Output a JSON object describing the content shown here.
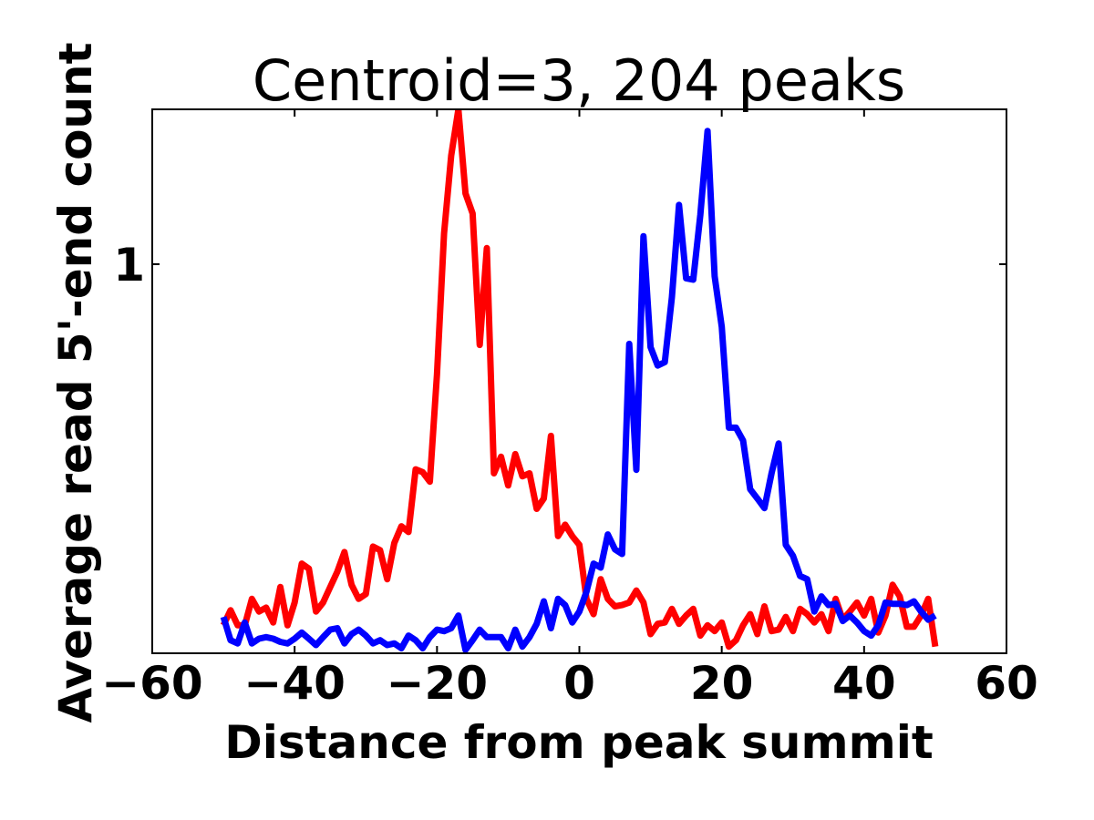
{
  "chart_data": {
    "type": "line",
    "title": "Centroid=3, 204 peaks",
    "xlabel": "Distance from peak summit",
    "ylabel": "Average read 5'-end count",
    "yscale": "log",
    "xlim": [
      -60,
      60
    ],
    "ylim": [
      0.1,
      2.5
    ],
    "xticks": [
      -60,
      -40,
      -20,
      0,
      20,
      40,
      60
    ],
    "xtick_labels": [
      "−60",
      "−40",
      "−20",
      "0",
      "20",
      "40",
      "60"
    ],
    "yticks": [
      1
    ],
    "ytick_labels": [
      "1"
    ],
    "grid": false,
    "legend": "none",
    "series": [
      {
        "color": "#ff0000",
        "x": [
          -50,
          -49,
          -48,
          -47,
          -46,
          -45,
          -44,
          -43,
          -42,
          -41,
          -40,
          -39,
          -38,
          -37,
          -36,
          -35,
          -34,
          -33,
          -32,
          -31,
          -30,
          -29,
          -28,
          -27,
          -26,
          -25,
          -24,
          -23,
          -22,
          -21,
          -20,
          -19,
          -18,
          -17,
          -16,
          -15,
          -14,
          -13,
          -12,
          -11,
          -10,
          -9,
          -8,
          -7,
          -6,
          -5,
          -4,
          -3,
          -2,
          -1,
          0,
          1,
          2,
          3,
          4,
          5,
          6,
          7,
          8,
          9,
          10,
          11,
          12,
          13,
          14,
          15,
          16,
          17,
          18,
          19,
          20,
          21,
          22,
          23,
          24,
          25,
          26,
          27,
          28,
          29,
          30,
          31,
          32,
          33,
          34,
          35,
          36,
          37,
          38,
          39,
          40,
          41,
          42,
          43,
          44,
          45,
          46,
          47,
          48,
          49,
          50
        ],
        "y": [
          0.118,
          0.129,
          0.118,
          0.118,
          0.138,
          0.128,
          0.131,
          0.12,
          0.148,
          0.118,
          0.135,
          0.17,
          0.165,
          0.128,
          0.135,
          0.148,
          0.162,
          0.182,
          0.15,
          0.138,
          0.142,
          0.188,
          0.184,
          0.155,
          0.192,
          0.212,
          0.205,
          0.297,
          0.292,
          0.276,
          0.52,
          1.2,
          1.9,
          2.5,
          1.52,
          1.35,
          0.62,
          1.1,
          0.29,
          0.32,
          0.27,
          0.325,
          0.285,
          0.29,
          0.235,
          0.25,
          0.362,
          0.2,
          0.214,
          0.2,
          0.19,
          0.138,
          0.126,
          0.155,
          0.138,
          0.132,
          0.133,
          0.135,
          0.145,
          0.135,
          0.112,
          0.119,
          0.12,
          0.13,
          0.119,
          0.125,
          0.13,
          0.111,
          0.118,
          0.114,
          0.12,
          0.104,
          0.108,
          0.118,
          0.126,
          0.112,
          0.132,
          0.114,
          0.115,
          0.124,
          0.114,
          0.13,
          0.126,
          0.12,
          0.126,
          0.114,
          0.138,
          0.122,
          0.128,
          0.135,
          0.125,
          0.138,
          0.113,
          0.125,
          0.15,
          0.14,
          0.117,
          0.117,
          0.125,
          0.138,
          0.104
        ]
      },
      {
        "color": "#0000ff",
        "x": [
          -50,
          -49,
          -48,
          -47,
          -46,
          -45,
          -44,
          -43,
          -42,
          -41,
          -40,
          -39,
          -38,
          -37,
          -36,
          -35,
          -34,
          -33,
          -32,
          -31,
          -30,
          -29,
          -28,
          -27,
          -26,
          -25,
          -24,
          -23,
          -22,
          -21,
          -20,
          -19,
          -18,
          -17,
          -16,
          -15,
          -14,
          -13,
          -12,
          -11,
          -10,
          -9,
          -8,
          -7,
          -6,
          -5,
          -4,
          -3,
          -2,
          -1,
          0,
          1,
          2,
          3,
          4,
          5,
          6,
          7,
          8,
          9,
          10,
          11,
          12,
          13,
          14,
          15,
          16,
          17,
          18,
          19,
          20,
          21,
          22,
          23,
          24,
          25,
          26,
          27,
          28,
          29,
          30,
          31,
          32,
          33,
          34,
          35,
          36,
          37,
          38,
          39,
          40,
          41,
          42,
          43,
          44,
          45,
          46,
          47,
          48,
          49,
          50
        ],
        "y": [
          0.124,
          0.108,
          0.106,
          0.12,
          0.106,
          0.109,
          0.11,
          0.109,
          0.107,
          0.106,
          0.109,
          0.113,
          0.109,
          0.105,
          0.11,
          0.115,
          0.116,
          0.106,
          0.112,
          0.115,
          0.111,
          0.106,
          0.108,
          0.105,
          0.106,
          0.103,
          0.111,
          0.108,
          0.103,
          0.11,
          0.115,
          0.114,
          0.116,
          0.125,
          0.102,
          0.108,
          0.115,
          0.11,
          0.11,
          0.11,
          0.103,
          0.115,
          0.104,
          0.11,
          0.119,
          0.136,
          0.116,
          0.138,
          0.133,
          0.12,
          0.128,
          0.144,
          0.17,
          0.166,
          0.202,
          0.185,
          0.18,
          0.624,
          0.296,
          1.18,
          0.612,
          0.549,
          0.56,
          0.822,
          1.42,
          0.92,
          0.912,
          1.34,
          2.2,
          0.93,
          0.69,
          0.38,
          0.38,
          0.352,
          0.264,
          0.25,
          0.236,
          0.29,
          0.346,
          0.19,
          0.178,
          0.158,
          0.155,
          0.128,
          0.14,
          0.133,
          0.134,
          0.121,
          0.125,
          0.12,
          0.114,
          0.111,
          0.118,
          0.135,
          0.134,
          0.134,
          0.133,
          0.136,
          0.128,
          0.122,
          0.125
        ]
      }
    ]
  }
}
